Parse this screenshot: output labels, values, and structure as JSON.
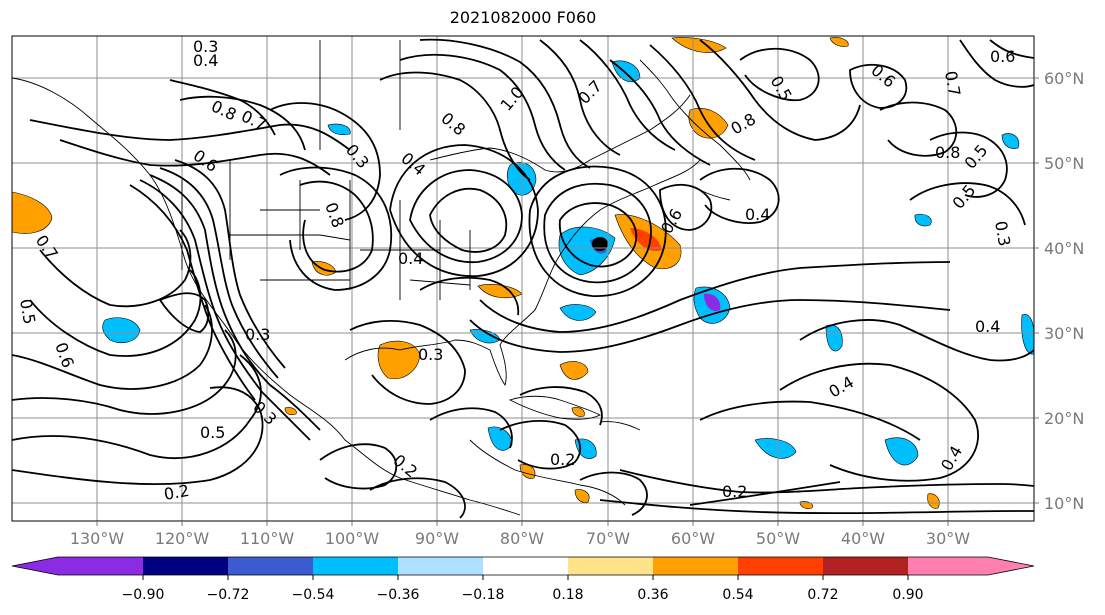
{
  "title": "2021082000 F060",
  "map": {
    "lon_labels": [
      "130°W",
      "120°W",
      "110°W",
      "100°W",
      "90°W",
      "80°W",
      "70°W",
      "60°W",
      "50°W",
      "40°W",
      "30°W"
    ],
    "lat_labels": [
      "60°N",
      "50°N",
      "40°N",
      "30°N",
      "20°N",
      "10°N"
    ],
    "contour_labels": [
      "0.3",
      "0.4",
      "0.8",
      "0.7",
      "0.6",
      "0.4",
      "0.3",
      "0.8",
      "1.0",
      "0.7",
      "0.8",
      "0.6",
      "0.5",
      "0.4",
      "0.8",
      "0.4",
      "0.5",
      "0.6",
      "0.7",
      "0.3",
      "0.5",
      "0.2",
      "0.3",
      "0.2",
      "0.2",
      "0.2",
      "0.3",
      "0.4",
      "0.4",
      "0.4",
      "0.8",
      "0.5",
      "0.6",
      "0.3",
      "0.6",
      "0.5",
      "0.7"
    ],
    "colors": {
      "light_blue": "#aee0ff",
      "sky_blue": "#00bfff",
      "mid_blue": "#3b5bd0",
      "purple": "#8b2be2",
      "yellow": "#ffe38a",
      "orange": "#ffa000",
      "red_orange": "#ff4000",
      "dark_red": "#b22222"
    }
  },
  "colorbar": {
    "ticks": [
      "−0.90",
      "−0.72",
      "−0.54",
      "−0.36",
      "−0.18",
      "0.18",
      "0.36",
      "0.54",
      "0.72",
      "0.90"
    ],
    "colors": [
      "#8b2be2",
      "#000080",
      "#3b5bd0",
      "#00bfff",
      "#aee0ff",
      "#ffffff",
      "#ffe38a",
      "#ffa000",
      "#ff4000",
      "#b22222",
      "#ff80b0",
      "#ff80b0"
    ]
  }
}
